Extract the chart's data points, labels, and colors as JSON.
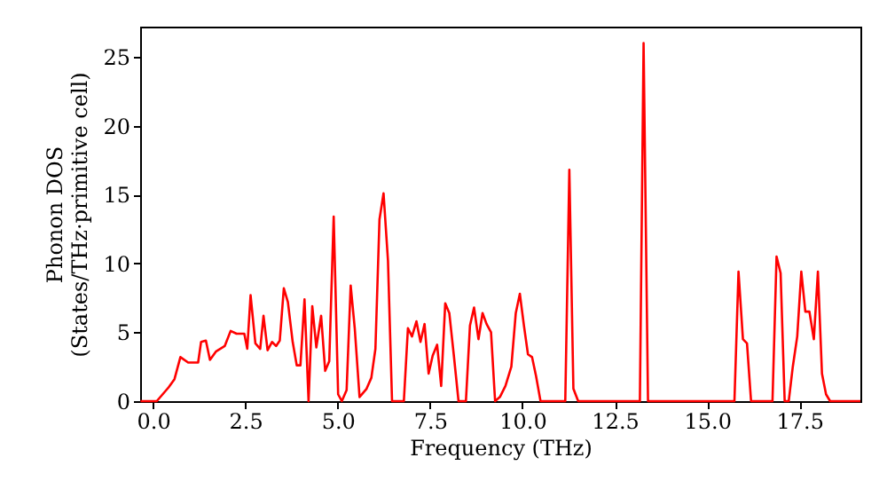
{
  "chart_data": {
    "type": "line",
    "xlabel": "Frequency (THz)",
    "ylabel": "Phonon DOS\n(States/THz·primitive cell)",
    "x": [
      -0.34,
      0.1,
      0.42,
      0.58,
      0.74,
      0.95,
      1.22,
      1.3,
      1.43,
      1.54,
      1.7,
      1.94,
      2.1,
      2.26,
      2.47,
      2.55,
      2.64,
      2.77,
      2.9,
      2.99,
      3.1,
      3.22,
      3.33,
      3.43,
      3.54,
      3.65,
      3.78,
      3.89,
      3.99,
      4.1,
      4.21,
      4.31,
      4.42,
      4.55,
      4.66,
      4.77,
      4.89,
      5.01,
      5.11,
      5.24,
      5.35,
      5.46,
      5.59,
      5.78,
      5.91,
      6.02,
      6.13,
      6.24,
      6.36,
      6.47,
      6.79,
      6.9,
      7.01,
      7.13,
      7.24,
      7.35,
      7.46,
      7.57,
      7.69,
      7.8,
      7.91,
      8.02,
      8.14,
      8.27,
      8.47,
      8.58,
      8.69,
      8.81,
      8.92,
      9.03,
      9.15,
      9.26,
      9.39,
      9.54,
      9.7,
      9.82,
      9.93,
      10.04,
      10.15,
      10.26,
      10.37,
      10.49,
      11.16,
      11.27,
      11.38,
      11.51,
      13.18,
      13.28,
      13.4,
      15.74,
      15.85,
      15.97,
      16.08,
      16.19,
      16.77,
      16.88,
      16.99,
      17.1,
      17.21,
      17.32,
      17.44,
      17.55,
      17.66,
      17.77,
      17.89,
      18.0,
      18.11,
      18.22,
      18.33,
      19.15
    ],
    "series": [
      {
        "color": "#ff0000",
        "values": [
          0,
          0,
          1.0,
          1.6,
          3.2,
          2.8,
          2.8,
          4.3,
          4.4,
          3.0,
          3.6,
          4.0,
          5.1,
          4.9,
          4.9,
          3.8,
          7.7,
          4.2,
          3.8,
          6.2,
          3.7,
          4.3,
          4.0,
          4.4,
          8.2,
          7.2,
          4.3,
          2.6,
          2.6,
          7.4,
          0,
          6.9,
          3.9,
          6.2,
          2.2,
          2.9,
          13.4,
          0.5,
          0,
          0.8,
          8.4,
          5.3,
          0.3,
          0.9,
          1.7,
          3.8,
          13.2,
          15.1,
          10.2,
          0,
          0,
          5.3,
          4.7,
          5.8,
          4.3,
          5.6,
          2.0,
          3.3,
          4.1,
          1.1,
          7.1,
          6.4,
          3.4,
          0,
          0,
          5.5,
          6.8,
          4.5,
          6.4,
          5.6,
          5.0,
          0,
          0.3,
          1.1,
          2.5,
          6.4,
          7.8,
          5.5,
          3.4,
          3.2,
          1.8,
          0,
          0,
          16.8,
          0.9,
          0,
          0,
          26.0,
          0,
          0,
          9.4,
          4.5,
          4.2,
          0,
          0,
          10.5,
          9.3,
          0,
          0,
          2.5,
          4.7,
          9.4,
          6.5,
          6.5,
          4.5,
          9.4,
          2.0,
          0.5,
          0,
          0
        ]
      }
    ],
    "xlim": [
      -0.35,
      19.15
    ],
    "ylim": [
      0,
      27.2
    ],
    "xticks": [
      {
        "value": 0,
        "label": "0.0"
      },
      {
        "value": 2.5,
        "label": "2.5"
      },
      {
        "value": 5,
        "label": "5.0"
      },
      {
        "value": 7.5,
        "label": "7.5"
      },
      {
        "value": 10,
        "label": "10.0"
      },
      {
        "value": 12.5,
        "label": "12.5"
      },
      {
        "value": 15,
        "label": "15.0"
      },
      {
        "value": 17.5,
        "label": "17.5"
      }
    ],
    "yticks": [
      0,
      5,
      10,
      15,
      20,
      25
    ],
    "grid": false,
    "marker": "none",
    "line_style": "solid"
  }
}
